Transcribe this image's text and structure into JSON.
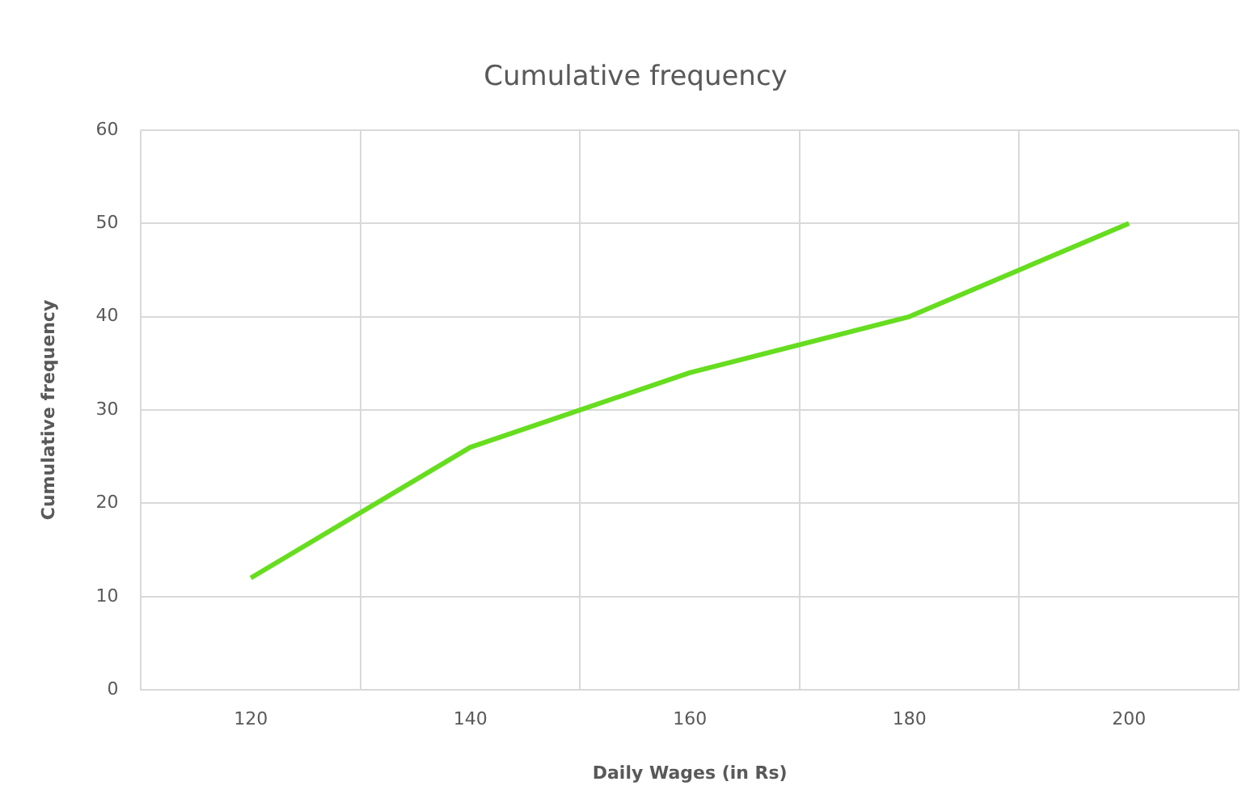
{
  "chart_data": {
    "type": "line",
    "title": "Cumulative frequency",
    "xlabel": "Daily Wages (in Rs)",
    "ylabel": "Cumulative frequency",
    "categories": [
      "120",
      "140",
      "160",
      "180",
      "200"
    ],
    "series": [
      {
        "color": "#66dd1f",
        "values": [
          12,
          26,
          34,
          40,
          50
        ]
      }
    ],
    "ylim": [
      0,
      60
    ],
    "yticks": [
      0,
      10,
      20,
      30,
      40,
      50,
      60
    ],
    "grid": true,
    "legend": false,
    "marker": "none",
    "line_style": "solid"
  }
}
